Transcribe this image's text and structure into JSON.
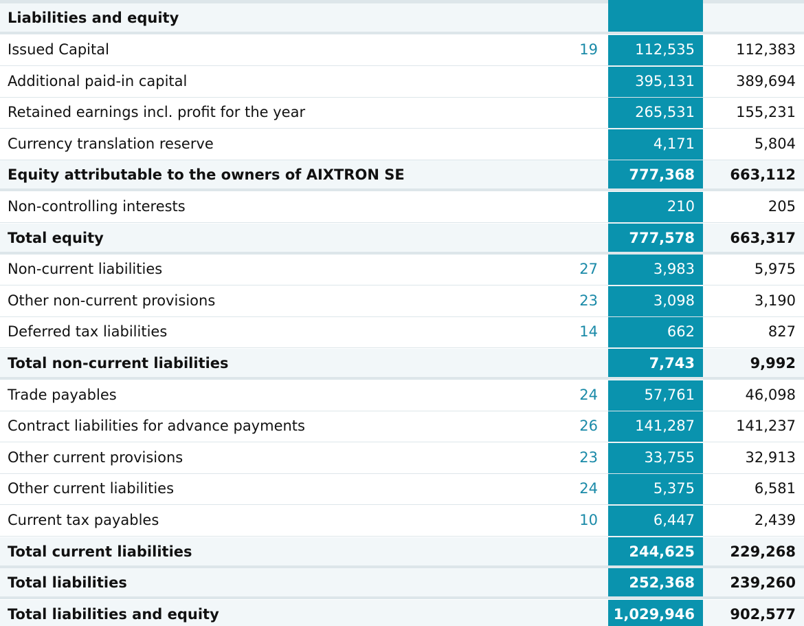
{
  "table": {
    "header": {
      "label": "Liabilities and equity"
    },
    "rows": [
      {
        "label": "Issued Capital",
        "note": "19",
        "current": "112,535",
        "previous": "112,383",
        "bold": false
      },
      {
        "label": "Additional paid-in capital",
        "note": "",
        "current": "395,131",
        "previous": "389,694",
        "bold": false
      },
      {
        "label": "Retained earnings incl. profit for the year",
        "note": "",
        "current": "265,531",
        "previous": "155,231",
        "bold": false
      },
      {
        "label": "Currency translation reserve",
        "note": "",
        "current": "4,171",
        "previous": "5,804",
        "bold": false
      },
      {
        "label": "Equity attributable to the owners of AIXTRON SE",
        "note": "",
        "current": "777,368",
        "previous": "663,112",
        "bold": true
      },
      {
        "label": "Non-controlling interests",
        "note": "",
        "current": "210",
        "previous": "205",
        "bold": false
      },
      {
        "label": "Total equity",
        "note": "",
        "current": "777,578",
        "previous": "663,317",
        "bold": true
      },
      {
        "label": "Non-current liabilities",
        "note": "27",
        "current": "3,983",
        "previous": "5,975",
        "bold": false
      },
      {
        "label": "Other non-current provisions",
        "note": "23",
        "current": "3,098",
        "previous": "3,190",
        "bold": false
      },
      {
        "label": "Deferred tax liabilities",
        "note": "14",
        "current": "662",
        "previous": "827",
        "bold": false
      },
      {
        "label": "Total non-current liabilities",
        "note": "",
        "current": "7,743",
        "previous": "9,992",
        "bold": true
      },
      {
        "label": "Trade payables",
        "note": "24",
        "current": "57,761",
        "previous": "46,098",
        "bold": false
      },
      {
        "label": "Contract liabilities for advance payments",
        "note": "26",
        "current": "141,287",
        "previous": "141,237",
        "bold": false
      },
      {
        "label": "Other current provisions",
        "note": "23",
        "current": "33,755",
        "previous": "32,913",
        "bold": false
      },
      {
        "label": "Other current liabilities",
        "note": "24",
        "current": "5,375",
        "previous": "6,581",
        "bold": false
      },
      {
        "label": "Current tax payables",
        "note": "10",
        "current": "6,447",
        "previous": "2,439",
        "bold": false
      },
      {
        "label": "Total current liabilities",
        "note": "",
        "current": "244,625",
        "previous": "229,268",
        "bold": true
      },
      {
        "label": "Total liabilities",
        "note": "",
        "current": "252,368",
        "previous": "239,260",
        "bold": true
      },
      {
        "label": "Total liabilities and equity",
        "note": "",
        "current": "1,029,946",
        "previous": "902,577",
        "bold": true
      }
    ]
  },
  "colors": {
    "current_column": "#0a93ae",
    "note_text": "#1a8aa8",
    "divider": "#dde6ea"
  }
}
